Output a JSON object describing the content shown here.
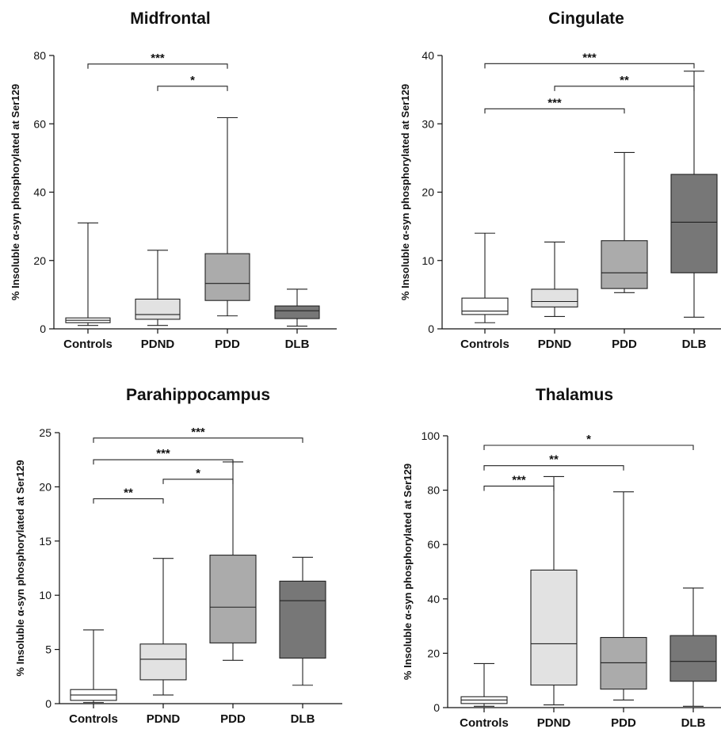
{
  "colors": {
    "box_fills": [
      "#ffffff",
      "#e2e2e2",
      "#ababab",
      "#777777"
    ]
  },
  "chart_data": [
    {
      "type": "box",
      "title": "Midfrontal",
      "ylabel": "% Insoluble α-syn phosphorylated at Ser129",
      "ylim": [
        0,
        80
      ],
      "yticks": [
        0,
        20,
        40,
        60,
        80
      ],
      "categories": [
        "Controls",
        "PDND",
        "PDD",
        "DLB"
      ],
      "boxes": [
        {
          "min": 1,
          "q1": 1.8,
          "median": 2.5,
          "q3": 3.2,
          "max": 31
        },
        {
          "min": 1,
          "q1": 2.8,
          "median": 4.2,
          "q3": 8.7,
          "max": 23
        },
        {
          "min": 3.8,
          "q1": 8.3,
          "median": 13.3,
          "q3": 22,
          "max": 61.8
        },
        {
          "min": 0.8,
          "q1": 3,
          "median": 5.3,
          "q3": 6.7,
          "max": 11.6
        }
      ],
      "significance": [
        {
          "from": 0,
          "to": 2,
          "label": "***",
          "y": 77.5
        },
        {
          "from": 1,
          "to": 2,
          "label": "*",
          "y": 71
        }
      ]
    },
    {
      "type": "box",
      "title": "Cingulate",
      "ylabel": "% Insoluble α-syn phosphorylated at Ser129",
      "ylim": [
        0,
        40
      ],
      "yticks": [
        0,
        10,
        20,
        30,
        40
      ],
      "categories": [
        "Controls",
        "PDND",
        "PDD",
        "DLB"
      ],
      "boxes": [
        {
          "min": 0.9,
          "q1": 2.1,
          "median": 2.6,
          "q3": 4.5,
          "max": 14
        },
        {
          "min": 1.8,
          "q1": 3.2,
          "median": 4,
          "q3": 5.8,
          "max": 12.7
        },
        {
          "min": 5.3,
          "q1": 5.9,
          "median": 8.2,
          "q3": 12.9,
          "max": 25.8
        },
        {
          "min": 1.7,
          "q1": 8.2,
          "median": 15.6,
          "q3": 22.6,
          "max": 37.7
        }
      ],
      "significance": [
        {
          "from": 0,
          "to": 3,
          "label": "***",
          "y": 38.8
        },
        {
          "from": 1,
          "to": 3,
          "label": "**",
          "y": 35.5
        },
        {
          "from": 0,
          "to": 2,
          "label": "***",
          "y": 32.2
        }
      ]
    },
    {
      "type": "box",
      "title": "Parahippocampus",
      "ylabel": "% Insoluble α-syn phosphorylated at Ser129",
      "ylim": [
        0,
        25
      ],
      "yticks": [
        0,
        5,
        10,
        15,
        20,
        25
      ],
      "categories": [
        "Controls",
        "PDND",
        "PDD",
        "DLB"
      ],
      "boxes": [
        {
          "min": 0.1,
          "q1": 0.3,
          "median": 0.8,
          "q3": 1.3,
          "max": 6.8
        },
        {
          "min": 0.8,
          "q1": 2.2,
          "median": 4.1,
          "q3": 5.5,
          "max": 13.4
        },
        {
          "min": 4,
          "q1": 5.6,
          "median": 8.9,
          "q3": 13.7,
          "max": 22.3
        },
        {
          "min": 1.7,
          "q1": 4.2,
          "median": 9.5,
          "q3": 11.3,
          "max": 13.5
        }
      ],
      "significance": [
        {
          "from": 0,
          "to": 3,
          "label": "***",
          "y": 24.5
        },
        {
          "from": 0,
          "to": 2,
          "label": "***",
          "y": 22.5
        },
        {
          "from": 1,
          "to": 2,
          "label": "*",
          "y": 20.7
        },
        {
          "from": 0,
          "to": 1,
          "label": "**",
          "y": 18.9
        }
      ]
    },
    {
      "type": "box",
      "title": "Thalamus",
      "ylabel": "% Insoluble α-syn phosphorylated at Ser129",
      "ylim": [
        0,
        100
      ],
      "yticks": [
        0,
        20,
        40,
        60,
        80,
        100
      ],
      "categories": [
        "Controls",
        "PDND",
        "PDD",
        "DLB"
      ],
      "boxes": [
        {
          "min": 0.5,
          "q1": 1.5,
          "median": 2.8,
          "q3": 4,
          "max": 16.2
        },
        {
          "min": 1,
          "q1": 8.3,
          "median": 23.5,
          "q3": 50.6,
          "max": 85
        },
        {
          "min": 2.8,
          "q1": 6.8,
          "median": 16.5,
          "q3": 25.8,
          "max": 79.4
        },
        {
          "min": 0.5,
          "q1": 9.7,
          "median": 17,
          "q3": 26.5,
          "max": 44
        }
      ],
      "significance": [
        {
          "from": 0,
          "to": 3,
          "label": "*",
          "y": 96.5
        },
        {
          "from": 0,
          "to": 2,
          "label": "**",
          "y": 89
        },
        {
          "from": 0,
          "to": 1,
          "label": "***",
          "y": 81.5
        }
      ]
    }
  ]
}
